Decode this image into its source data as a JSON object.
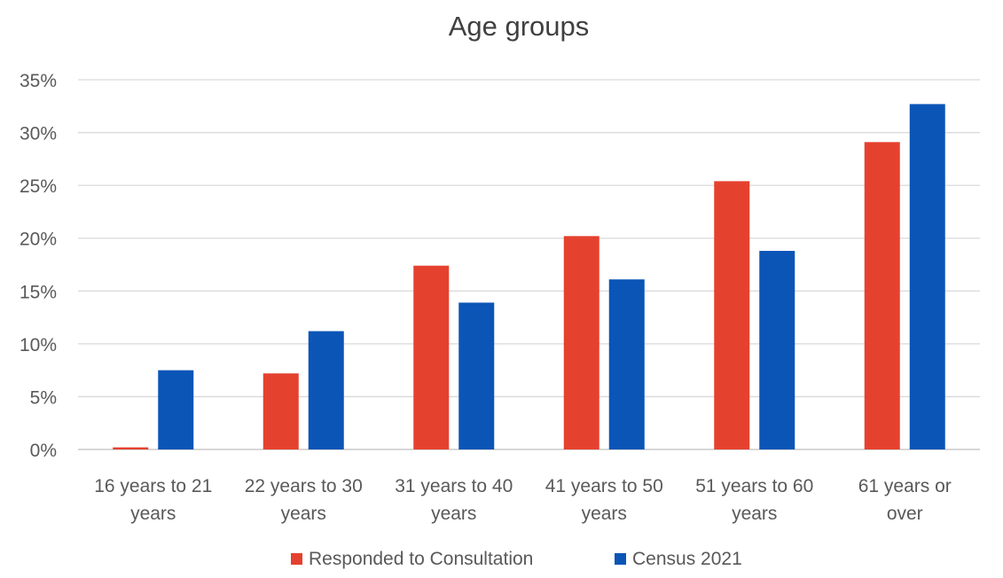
{
  "chart_data": {
    "type": "bar",
    "title": "Age groups",
    "xlabel": "",
    "ylabel": "",
    "ylim": [
      0,
      35
    ],
    "y_ticks": [
      "0%",
      "5%",
      "10%",
      "15%",
      "20%",
      "25%",
      "30%",
      "35%"
    ],
    "y_tick_values": [
      0,
      5,
      10,
      15,
      20,
      25,
      30,
      35
    ],
    "grid": true,
    "legend_position": "bottom",
    "categories": [
      [
        "16 years to 21",
        "years"
      ],
      [
        "22 years to 30",
        "years"
      ],
      [
        "31 years to 40",
        "years"
      ],
      [
        "41 years to 50",
        "years"
      ],
      [
        "51 years to 60",
        "years"
      ],
      [
        "61 years or",
        "over"
      ]
    ],
    "series": [
      {
        "name": "Responded to Consultation",
        "color": "#e5412f",
        "values": [
          0.2,
          7.2,
          17.4,
          20.2,
          25.4,
          29.1
        ]
      },
      {
        "name": "Census 2021",
        "color": "#0b55b7",
        "values": [
          7.5,
          11.2,
          13.9,
          16.1,
          18.8,
          32.7
        ]
      }
    ]
  }
}
